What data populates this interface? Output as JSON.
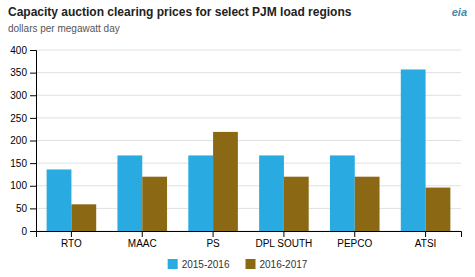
{
  "chart_data": {
    "type": "bar",
    "title": "Capacity auction clearing prices for select PJM load regions",
    "subtitle": "dollars per megawatt day",
    "annotations": [
      "eia"
    ],
    "categories": [
      "RTO",
      "MAAC",
      "PS",
      "DPL SOUTH",
      "PEPCO",
      "ATSI"
    ],
    "series": [
      {
        "name": "2015-2016",
        "color": "#29ABE2",
        "values": [
          136,
          167,
          167,
          167,
          167,
          357
        ]
      },
      {
        "name": "2016-2017",
        "color": "#8B6914",
        "values": [
          59,
          120,
          219,
          120,
          120,
          96
        ]
      }
    ],
    "ylim": [
      0,
      400
    ],
    "yticks": [
      0,
      50,
      100,
      150,
      200,
      250,
      300,
      350,
      400
    ],
    "grid": true,
    "legend": "bottom"
  }
}
